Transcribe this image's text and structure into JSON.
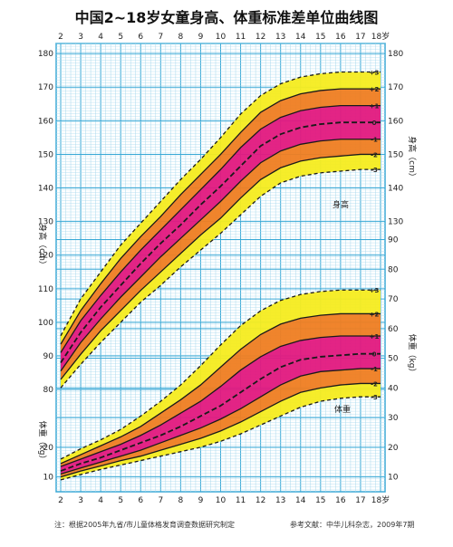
{
  "chart_data": {
    "type": "line",
    "title": "中国2~18岁女童身高、体重标准差单位曲线图",
    "x_ticks": [
      "2",
      "3",
      "4",
      "5",
      "6",
      "7",
      "8",
      "9",
      "10",
      "11",
      "12",
      "13",
      "14",
      "15",
      "16",
      "17",
      "18岁"
    ],
    "x_range": [
      2,
      18
    ],
    "height_axis": {
      "label_left": "身高（cm）",
      "label_right": "身高（cm）",
      "left_ticks": [
        80,
        90,
        100,
        110,
        120,
        130,
        140,
        150,
        160,
        170,
        180
      ],
      "right_ticks": [
        130,
        140,
        150,
        160,
        170,
        180
      ],
      "range": [
        76,
        183
      ],
      "zone_label": "身高"
    },
    "weight_axis": {
      "label_left": "体重（kg）",
      "label_right": "体重（kg）",
      "left_ticks": [
        10,
        20
      ],
      "right_ticks": [
        10,
        20,
        30,
        40,
        50,
        60,
        70,
        80,
        90
      ],
      "range": [
        5,
        92
      ],
      "zone_label": "体重"
    },
    "height_series": [
      {
        "name": "-3",
        "x": [
          2,
          3,
          4,
          5,
          6,
          7,
          8,
          9,
          10,
          11,
          12,
          13,
          14,
          15,
          16,
          17,
          18
        ],
        "values": [
          80.5,
          87.5,
          94,
          100,
          106,
          111,
          116.5,
          121.5,
          126.5,
          132,
          137.5,
          141.5,
          143.5,
          144.5,
          145,
          145.5,
          145.5
        ]
      },
      {
        "name": "-2",
        "x": [
          2,
          3,
          4,
          5,
          6,
          7,
          8,
          9,
          10,
          11,
          12,
          13,
          14,
          15,
          16,
          17,
          18
        ],
        "values": [
          83,
          90.5,
          97.5,
          103.5,
          109.5,
          115,
          120.5,
          126,
          131,
          137,
          142.5,
          146,
          148,
          149,
          149.5,
          150,
          150
        ]
      },
      {
        "name": "-1",
        "x": [
          2,
          3,
          4,
          5,
          6,
          7,
          8,
          9,
          10,
          11,
          12,
          13,
          14,
          15,
          16,
          17,
          18
        ],
        "values": [
          85.5,
          94,
          101,
          107.5,
          113.5,
          119.5,
          125,
          130.5,
          136,
          142,
          147.5,
          151,
          153,
          154,
          154.5,
          154.5,
          154.5
        ]
      },
      {
        "name": "0",
        "x": [
          2,
          3,
          4,
          5,
          6,
          7,
          8,
          9,
          10,
          11,
          12,
          13,
          14,
          15,
          16,
          17,
          18
        ],
        "values": [
          88,
          97,
          104.5,
          111,
          117.5,
          123.5,
          129,
          135,
          140.5,
          146.5,
          152.5,
          156,
          158,
          159,
          159.5,
          159.5,
          159.5
        ]
      },
      {
        "name": "+1",
        "x": [
          2,
          3,
          4,
          5,
          6,
          7,
          8,
          9,
          10,
          11,
          12,
          13,
          14,
          15,
          16,
          17,
          18
        ],
        "values": [
          91,
          100.5,
          108,
          115,
          121.5,
          127.5,
          133.5,
          139.5,
          145.5,
          152,
          157.5,
          161,
          163,
          164,
          164.5,
          164.5,
          164.5
        ]
      },
      {
        "name": "+2",
        "x": [
          2,
          3,
          4,
          5,
          6,
          7,
          8,
          9,
          10,
          11,
          12,
          13,
          14,
          15,
          16,
          17,
          18
        ],
        "values": [
          93.5,
          103.5,
          111.5,
          119,
          125.5,
          131.5,
          138,
          144,
          150,
          156.5,
          162.5,
          166,
          168,
          169,
          169.5,
          169.5,
          169.5
        ]
      },
      {
        "name": "+3",
        "x": [
          2,
          3,
          4,
          5,
          6,
          7,
          8,
          9,
          10,
          11,
          12,
          13,
          14,
          15,
          16,
          17,
          18
        ],
        "values": [
          96,
          107,
          115,
          123,
          129.5,
          136,
          142.5,
          148.5,
          155,
          162,
          167.5,
          171,
          173,
          174,
          174.5,
          174.5,
          174.5
        ]
      }
    ],
    "weight_series": [
      {
        "name": "-3",
        "x": [
          2,
          3,
          4,
          5,
          6,
          7,
          8,
          9,
          10,
          11,
          12,
          13,
          14,
          15,
          16,
          17,
          18
        ],
        "values": [
          9,
          10.8,
          12.5,
          14,
          15.5,
          17,
          18.5,
          20,
          22,
          24.5,
          27.5,
          30.5,
          33.5,
          35.5,
          36.5,
          37,
          37
        ]
      },
      {
        "name": "-2",
        "x": [
          2,
          3,
          4,
          5,
          6,
          7,
          8,
          9,
          10,
          11,
          12,
          13,
          14,
          15,
          16,
          17,
          18
        ],
        "values": [
          10,
          12,
          13.7,
          15.5,
          17,
          19,
          21,
          23,
          25.5,
          28.5,
          32,
          35.5,
          38.5,
          40,
          41,
          41.5,
          41.5
        ]
      },
      {
        "name": "-1",
        "x": [
          2,
          3,
          4,
          5,
          6,
          7,
          8,
          9,
          10,
          11,
          12,
          13,
          14,
          15,
          16,
          17,
          18
        ],
        "values": [
          11,
          13,
          15,
          17,
          19,
          21.5,
          24,
          26.5,
          29.5,
          33,
          37,
          41,
          44,
          45.5,
          46,
          46.5,
          46.5
        ]
      },
      {
        "name": "0",
        "x": [
          2,
          3,
          4,
          5,
          6,
          7,
          8,
          9,
          10,
          11,
          12,
          13,
          14,
          15,
          16,
          17,
          18
        ],
        "values": [
          12,
          14.5,
          16.5,
          19,
          21.5,
          24,
          27,
          30.5,
          34,
          38.5,
          43,
          47,
          49.5,
          50.5,
          51,
          51.5,
          51.5
        ]
      },
      {
        "name": "+1",
        "x": [
          2,
          3,
          4,
          5,
          6,
          7,
          8,
          9,
          10,
          11,
          12,
          13,
          14,
          15,
          16,
          17,
          18
        ],
        "values": [
          13.5,
          16,
          18.5,
          21,
          24,
          27.5,
          31.5,
          35.5,
          40.5,
          46,
          50.5,
          54,
          56,
          57,
          57.5,
          57.5,
          57.5
        ]
      },
      {
        "name": "+2",
        "x": [
          2,
          3,
          4,
          5,
          6,
          7,
          8,
          9,
          10,
          11,
          12,
          13,
          14,
          15,
          16,
          17,
          18
        ],
        "values": [
          14.5,
          17.5,
          20.5,
          23.5,
          27,
          31.5,
          36,
          41,
          47,
          53,
          58,
          61.5,
          63.5,
          64.5,
          65,
          65,
          65
        ]
      },
      {
        "name": "+3",
        "x": [
          2,
          3,
          4,
          5,
          6,
          7,
          8,
          9,
          10,
          11,
          12,
          13,
          14,
          15,
          16,
          17,
          18
        ],
        "values": [
          16,
          19.5,
          22.5,
          26,
          30.5,
          35.5,
          41,
          47.5,
          54.5,
          61,
          66,
          69.5,
          71.5,
          72.5,
          73,
          73,
          73
        ]
      }
    ],
    "colors": {
      "grid_major": "#3aa9d6",
      "grid_minor": "#a9d9ee",
      "band_outer": "#f5ec1f",
      "band_mid": "#ef7d21",
      "band_inner": "#e2187e",
      "curve": "#1a1a1a",
      "background": "#ffffff"
    },
    "footnote_left": "注：根据2005年九省/市儿童体格发育调查数据研究制定",
    "footnote_right": "参考文献：中华儿科杂志，2009年7期"
  }
}
